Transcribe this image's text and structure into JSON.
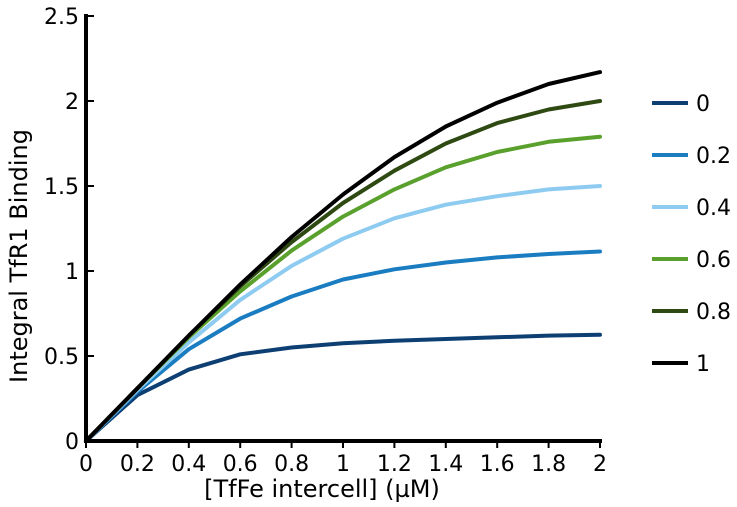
{
  "chart_data": {
    "type": "line",
    "title": "",
    "xlabel": "[TfFe intercell] (µM)",
    "ylabel": "Integral TfR1 Binding",
    "xlim": [
      0,
      2
    ],
    "ylim": [
      0,
      2.5
    ],
    "xticks": [
      "0",
      "0.2",
      "0.4",
      "0.6",
      "0.8",
      "1",
      "1.2",
      "1.4",
      "1.6",
      "1.8",
      "2"
    ],
    "xtick_values": [
      0,
      0.2,
      0.4,
      0.6,
      0.8,
      1,
      1.2,
      1.4,
      1.6,
      1.8,
      2
    ],
    "yticks": [
      "0",
      "0.5",
      "1",
      "1.5",
      "2",
      "2.5"
    ],
    "ytick_values": [
      0,
      0.5,
      1,
      1.5,
      2,
      2.5
    ],
    "grid": false,
    "legend_position": "right",
    "x": [
      0,
      0.2,
      0.4,
      0.6,
      0.8,
      1,
      1.2,
      1.4,
      1.6,
      1.8,
      2
    ],
    "series": [
      {
        "name": "0",
        "color": "#0d3f73",
        "values": [
          0,
          0.27,
          0.42,
          0.51,
          0.55,
          0.575,
          0.59,
          0.6,
          0.61,
          0.62,
          0.625
        ]
      },
      {
        "name": "0.2",
        "color": "#1a7cc1",
        "values": [
          0,
          0.29,
          0.54,
          0.72,
          0.85,
          0.95,
          1.01,
          1.05,
          1.08,
          1.1,
          1.115
        ]
      },
      {
        "name": "0.4",
        "color": "#8ecbf0",
        "values": [
          0,
          0.3,
          0.58,
          0.83,
          1.03,
          1.19,
          1.31,
          1.39,
          1.44,
          1.48,
          1.5
        ]
      },
      {
        "name": "0.6",
        "color": "#5aa02c",
        "values": [
          0,
          0.31,
          0.61,
          0.88,
          1.12,
          1.32,
          1.48,
          1.61,
          1.7,
          1.76,
          1.79
        ]
      },
      {
        "name": "0.8",
        "color": "#2e4a12",
        "values": [
          0,
          0.31,
          0.62,
          0.91,
          1.17,
          1.4,
          1.59,
          1.75,
          1.87,
          1.95,
          2.0
        ]
      },
      {
        "name": "1",
        "color": "#000000",
        "values": [
          0,
          0.31,
          0.62,
          0.92,
          1.2,
          1.45,
          1.67,
          1.85,
          1.99,
          2.1,
          2.17
        ]
      }
    ]
  }
}
